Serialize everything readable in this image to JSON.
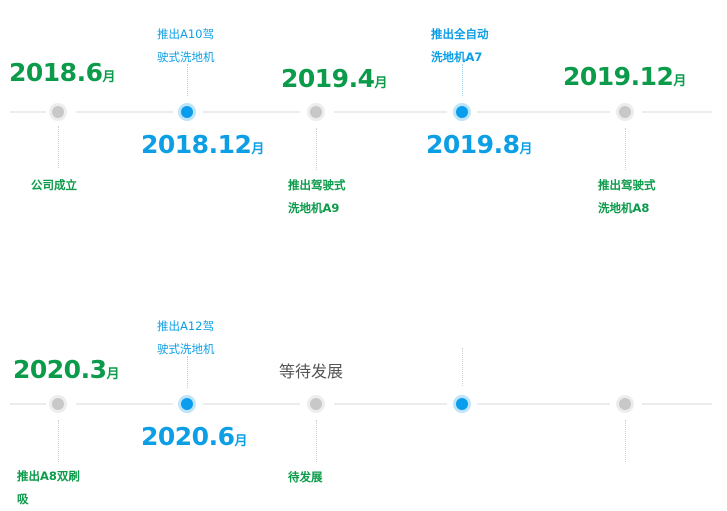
{
  "unit": "月",
  "colors": {
    "green": "#0b9b4a",
    "blue": "#0d9fe6",
    "dot_gray": "#c8c8c8",
    "line": "#ececec"
  },
  "row1": [
    {
      "year": "2018.6",
      "desc": [
        "公司成立"
      ]
    },
    {
      "year": "2018.12",
      "desc": [
        "推出A10驾",
        "驶式洗地机"
      ]
    },
    {
      "year": "2019.4",
      "desc": [
        "推出驾驶式",
        "洗地机A9"
      ]
    },
    {
      "year": "2019.8",
      "desc": [
        "推出全自动",
        "洗地机A7"
      ]
    },
    {
      "year": "2019.12",
      "desc": [
        "推出驾驶式",
        "洗地机A8"
      ]
    }
  ],
  "row2": [
    {
      "year": "2020.3",
      "desc": [
        "推出A8双刷",
        "吸"
      ]
    },
    {
      "year": "2020.6",
      "desc": [
        "推出A12驾",
        "驶式洗地机"
      ]
    },
    {
      "title": "等待发展",
      "desc": [
        "待发展"
      ]
    }
  ]
}
